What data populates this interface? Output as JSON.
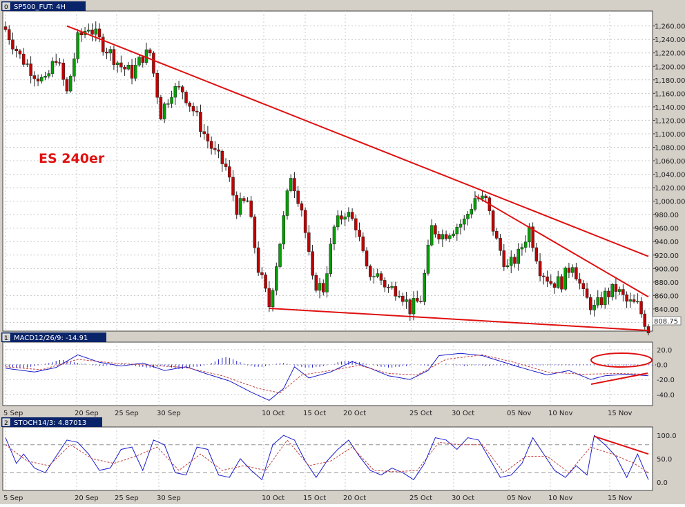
{
  "price_panel": {
    "index": "0",
    "title": "SP500_FUT: 4H",
    "annotation": "ES 240er",
    "last_price_label": "808.75",
    "y_ticks": [
      "1,260.00",
      "1,240.00",
      "1,220.00",
      "1,200.00",
      "1,180.00",
      "1,160.00",
      "1,140.00",
      "1,120.00",
      "1,100.00",
      "1,080.00",
      "1,060.00",
      "1,040.00",
      "1,020.00",
      "1,000.00",
      "980.00",
      "960.00",
      "940.00",
      "920.00",
      "900.00",
      "880.00",
      "860.00",
      "840.00",
      "820.00",
      "800.00"
    ]
  },
  "macd_panel": {
    "index": "1",
    "title": "MACD12/26/9: -14.91",
    "y_ticks": [
      "20.0",
      "0.0",
      "-20.0",
      "-40.0"
    ]
  },
  "stoch_panel": {
    "index": "2",
    "title": "STOCH14/3: 4.87013",
    "y_ticks": [
      "100.0",
      "50.0",
      "0.0"
    ]
  },
  "x_ticks": [
    "5 Sep",
    "20 Sep",
    "25 Sep",
    "30 Sep",
    "10 Oct",
    "15 Oct",
    "20 Oct",
    "25 Oct",
    "30 Oct",
    "05 Nov",
    "10 Nov",
    "15 Nov"
  ],
  "colors": {
    "up": "#00a000",
    "down": "#c00000",
    "trend": "#e01010",
    "macd": "#1a1acc",
    "signal": "#c04040",
    "stoch": "#1a1acc",
    "header": "#0a246a"
  },
  "chart_data": [
    {
      "type": "candlestick",
      "title": "SP500_FUT: 4H",
      "x_ticks": [
        "5 Sep",
        "20 Sep",
        "25 Sep",
        "30 Sep",
        "10 Oct",
        "15 Oct",
        "20 Oct",
        "25 Oct",
        "30 Oct",
        "05 Nov",
        "10 Nov",
        "15 Nov"
      ],
      "ylim": [
        800,
        1275
      ],
      "close_path": [
        [
          0,
          1255
        ],
        [
          4,
          1215
        ],
        [
          8,
          1190
        ],
        [
          11,
          1175
        ],
        [
          14,
          1215
        ],
        [
          17,
          1160
        ],
        [
          20,
          1240
        ],
        [
          23,
          1260
        ],
        [
          26,
          1238
        ],
        [
          29,
          1220
        ],
        [
          32,
          1200
        ],
        [
          35,
          1190
        ],
        [
          38,
          1215
        ],
        [
          40,
          1220
        ],
        [
          43,
          1130
        ],
        [
          46,
          1165
        ],
        [
          49,
          1165
        ],
        [
          52,
          1135
        ],
        [
          55,
          1100
        ],
        [
          58,
          1070
        ],
        [
          61,
          1050
        ],
        [
          64,
          990
        ],
        [
          67,
          1000
        ],
        [
          70,
          900
        ],
        [
          73,
          845
        ],
        [
          76,
          940
        ],
        [
          79,
          1040
        ],
        [
          82,
          990
        ],
        [
          85,
          880
        ],
        [
          88,
          870
        ],
        [
          91,
          960
        ],
        [
          94,
          985
        ],
        [
          97,
          965
        ],
        [
          100,
          895
        ],
        [
          103,
          890
        ],
        [
          106,
          870
        ],
        [
          109,
          870
        ],
        [
          112,
          840
        ],
        [
          115,
          855
        ],
        [
          118,
          960
        ],
        [
          121,
          950
        ],
        [
          124,
          960
        ],
        [
          127,
          970
        ],
        [
          130,
          1005
        ],
        [
          133,
          1000
        ],
        [
          136,
          940
        ],
        [
          139,
          900
        ],
        [
          142,
          920
        ],
        [
          145,
          960
        ],
        [
          148,
          900
        ],
        [
          151,
          880
        ],
        [
          154,
          880
        ],
        [
          157,
          910
        ],
        [
          160,
          860
        ],
        [
          163,
          840
        ],
        [
          166,
          860
        ],
        [
          169,
          870
        ],
        [
          172,
          850
        ],
        [
          175,
          845
        ],
        [
          178,
          810
        ]
      ],
      "trendlines": [
        {
          "from": [
            17,
            1260
          ],
          "to": [
            178,
            918
          ]
        },
        {
          "from": [
            130,
            1008
          ],
          "to": [
            178,
            858
          ]
        },
        {
          "from": [
            73,
            841
          ],
          "to": [
            178,
            808
          ]
        }
      ]
    },
    {
      "type": "line",
      "title": "MACD12/26/9: -14.91",
      "ylim": [
        -55,
        30
      ],
      "series": [
        {
          "name": "MACD",
          "points": [
            [
              0,
              -5
            ],
            [
              8,
              -10
            ],
            [
              14,
              -4
            ],
            [
              20,
              13
            ],
            [
              26,
              3
            ],
            [
              32,
              -2
            ],
            [
              38,
              2
            ],
            [
              44,
              -8
            ],
            [
              50,
              -3
            ],
            [
              56,
              -13
            ],
            [
              62,
              -22
            ],
            [
              68,
              -37
            ],
            [
              73,
              -48
            ],
            [
              77,
              -32
            ],
            [
              80,
              -3
            ],
            [
              84,
              -18
            ],
            [
              90,
              -10
            ],
            [
              96,
              4
            ],
            [
              101,
              -5
            ],
            [
              106,
              -15
            ],
            [
              112,
              -20
            ],
            [
              117,
              -8
            ],
            [
              120,
              12
            ],
            [
              126,
              15
            ],
            [
              132,
              12
            ],
            [
              136,
              6
            ],
            [
              142,
              -3
            ],
            [
              150,
              -14
            ],
            [
              156,
              -8
            ],
            [
              162,
              -20
            ],
            [
              166,
              -15
            ],
            [
              172,
              -13
            ],
            [
              178,
              -15
            ]
          ]
        },
        {
          "name": "Signal",
          "points": [
            [
              0,
              -3
            ],
            [
              10,
              -7
            ],
            [
              20,
              7
            ],
            [
              30,
              2
            ],
            [
              40,
              -1
            ],
            [
              50,
              -4
            ],
            [
              60,
              -15
            ],
            [
              70,
              -32
            ],
            [
              76,
              -38
            ],
            [
              82,
              -14
            ],
            [
              90,
              -8
            ],
            [
              98,
              -1
            ],
            [
              106,
              -12
            ],
            [
              114,
              -14
            ],
            [
              122,
              7
            ],
            [
              132,
              13
            ],
            [
              140,
              4
            ],
            [
              150,
              -10
            ],
            [
              160,
              -13
            ],
            [
              170,
              -12
            ],
            [
              178,
              -13
            ]
          ]
        }
      ],
      "histogram": [
        -2,
        -3,
        -4,
        -4,
        -5,
        -5,
        -4,
        -3,
        -2,
        -1,
        0,
        1,
        2,
        3,
        5,
        6,
        6,
        5,
        4,
        3,
        2,
        1,
        1,
        0,
        -1,
        -1,
        -2,
        -2,
        -1,
        -1,
        0,
        0,
        1,
        1,
        0,
        -1,
        -2,
        -3,
        -3,
        -4,
        -4,
        -4,
        -3,
        -2,
        -2,
        -3,
        -4,
        -5,
        -6,
        -6,
        -5,
        -4,
        -3,
        -3,
        -2,
        -1,
        0,
        2,
        4,
        7,
        9,
        10,
        9,
        7,
        5,
        3,
        1,
        -1,
        -2,
        -3,
        -3,
        -3,
        -2,
        -1,
        0,
        1,
        2,
        2,
        1,
        0,
        -1,
        -2,
        -3,
        -4,
        -4,
        -4,
        -3,
        -3,
        -2,
        -1,
        0,
        1,
        3,
        4,
        5,
        5,
        5,
        4,
        3,
        2,
        1,
        0,
        -1,
        -2,
        -3,
        -3,
        -4,
        -4,
        -3,
        -3,
        -2,
        -2,
        -1,
        0,
        0,
        -1,
        -1,
        -2,
        -2,
        -1,
        0,
        0,
        1,
        0,
        -1,
        -1,
        -1,
        -2,
        -2,
        -1,
        -1,
        -1,
        -1,
        -2,
        -2,
        -1,
        -1,
        -1,
        -1,
        -1,
        -1,
        -2,
        -2,
        -1,
        -1,
        -1,
        -1,
        -1,
        -1,
        -1,
        -1,
        -1,
        -1,
        -1,
        -1,
        -1,
        -1,
        -1,
        -1,
        -1,
        -1,
        -1,
        -1,
        -1,
        -1,
        -1,
        -1,
        -1,
        -1,
        -1,
        -1,
        -1,
        -1,
        -1,
        -1,
        -1,
        -1,
        -1,
        -1,
        -1,
        -1,
        -1
      ]
    },
    {
      "type": "line",
      "title": "STOCH14/3: 4.87013",
      "ylim": [
        -18,
        118
      ],
      "series": [
        {
          "name": "%K",
          "points": [
            [
              0,
              95
            ],
            [
              3,
              40
            ],
            [
              5,
              60
            ],
            [
              8,
              30
            ],
            [
              11,
              20
            ],
            [
              14,
              55
            ],
            [
              17,
              90
            ],
            [
              20,
              85
            ],
            [
              23,
              60
            ],
            [
              26,
              25
            ],
            [
              29,
              30
            ],
            [
              32,
              70
            ],
            [
              35,
              75
            ],
            [
              38,
              25
            ],
            [
              41,
              90
            ],
            [
              44,
              80
            ],
            [
              47,
              20
            ],
            [
              50,
              15
            ],
            [
              53,
              75
            ],
            [
              56,
              70
            ],
            [
              59,
              15
            ],
            [
              62,
              10
            ],
            [
              65,
              50
            ],
            [
              68,
              25
            ],
            [
              71,
              5
            ],
            [
              74,
              80
            ],
            [
              77,
              100
            ],
            [
              80,
              90
            ],
            [
              83,
              45
            ],
            [
              86,
              10
            ],
            [
              89,
              45
            ],
            [
              92,
              70
            ],
            [
              95,
              90
            ],
            [
              98,
              55
            ],
            [
              101,
              25
            ],
            [
              104,
              15
            ],
            [
              107,
              30
            ],
            [
              110,
              20
            ],
            [
              113,
              5
            ],
            [
              116,
              40
            ],
            [
              119,
              95
            ],
            [
              122,
              90
            ],
            [
              125,
              70
            ],
            [
              128,
              95
            ],
            [
              131,
              90
            ],
            [
              134,
              50
            ],
            [
              137,
              10
            ],
            [
              140,
              15
            ],
            [
              143,
              40
            ],
            [
              146,
              95
            ],
            [
              149,
              60
            ],
            [
              152,
              25
            ],
            [
              155,
              10
            ],
            [
              158,
              35
            ],
            [
              161,
              15
            ],
            [
              163,
              100
            ],
            [
              166,
              80
            ],
            [
              169,
              55
            ],
            [
              172,
              10
            ],
            [
              175,
              60
            ],
            [
              178,
              5
            ]
          ]
        },
        {
          "name": "%D",
          "points": [
            [
              0,
              80
            ],
            [
              6,
              45
            ],
            [
              12,
              35
            ],
            [
              18,
              80
            ],
            [
              24,
              50
            ],
            [
              30,
              40
            ],
            [
              36,
              55
            ],
            [
              42,
              75
            ],
            [
              48,
              25
            ],
            [
              54,
              60
            ],
            [
              60,
              25
            ],
            [
              66,
              35
            ],
            [
              72,
              25
            ],
            [
              78,
              90
            ],
            [
              84,
              35
            ],
            [
              90,
              45
            ],
            [
              96,
              75
            ],
            [
              102,
              25
            ],
            [
              108,
              22
            ],
            [
              114,
              25
            ],
            [
              120,
              85
            ],
            [
              126,
              80
            ],
            [
              132,
              80
            ],
            [
              138,
              20
            ],
            [
              144,
              55
            ],
            [
              150,
              55
            ],
            [
              156,
              20
            ],
            [
              162,
              75
            ],
            [
              168,
              60
            ],
            [
              174,
              40
            ],
            [
              178,
              20
            ]
          ]
        }
      ],
      "levels": [
        20,
        80
      ],
      "trendline": {
        "from": [
          163,
          98
        ],
        "to": [
          178,
          60
        ]
      }
    }
  ]
}
